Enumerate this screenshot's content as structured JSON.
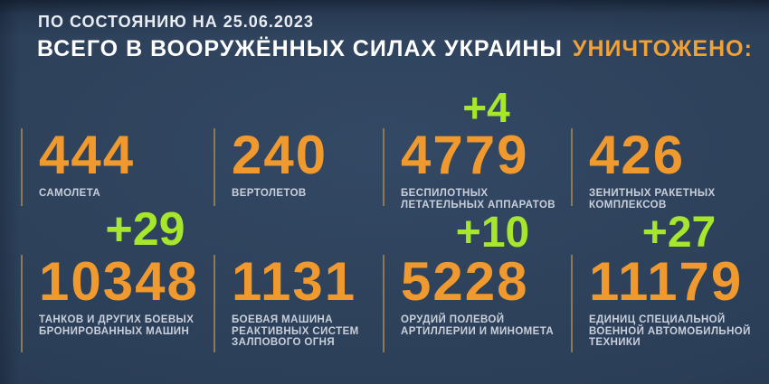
{
  "header": {
    "date_line": "ПО СОСТОЯНИЮ НА 25.06.2023",
    "title_white": "ВСЕГО В ВООРУЖЁННЫХ СИЛАХ УКРАИНЫ",
    "title_orange": "УНИЧТОЖЕНО:"
  },
  "stats": [
    {
      "value": "444",
      "delta": "",
      "label": "САМОЛЕТА"
    },
    {
      "value": "240",
      "delta": "",
      "label": "ВЕРТОЛЕТОВ"
    },
    {
      "value": "4779",
      "delta": "+4",
      "label": "БЕСПИЛОТНЫХ\nЛЕТАТЕЛЬНЫХ АППАРАТОВ"
    },
    {
      "value": "426",
      "delta": "",
      "label": "ЗЕНИТНЫХ РАКЕТНЫХ\nКОМПЛЕКСОВ"
    },
    {
      "value": "10348",
      "delta": "+29",
      "label": "ТАНКОВ И ДРУГИХ БОЕВЫХ\nБРОНИРОВАННЫХ МАШИН"
    },
    {
      "value": "1131",
      "delta": "",
      "label": "БОЕВАЯ МАШИНА\nРЕАКТИВНЫХ СИСТЕМ\nЗАЛПОВОГО ОГНЯ"
    },
    {
      "value": "5228",
      "delta": "+10",
      "label": "ОРУДИЙ ПОЛЕВОЙ\nАРТИЛЛЕРИИ И МИНОМЕТА"
    },
    {
      "value": "11179",
      "delta": "+27",
      "label": "ЕДИНИЦ СПЕЦИАЛЬНОЙ\nВОЕННОЙ АВТОМОБИЛЬНОЙ\nТЕХНИКИ"
    }
  ],
  "colors": {
    "background": "#2b3e57",
    "accent_orange": "#f0992e",
    "delta_green": "#a6e62c",
    "label_gray": "#c9cfdb",
    "divider": "#8a7a55"
  },
  "chart_data": {
    "type": "table",
    "title": "ВСЕГО В ВООРУЖЁННЫХ СИЛАХ УКРАИНЫ УНИЧТОЖЕНО:",
    "subtitle": "ПО СОСТОЯНИЮ НА 25.06.2023",
    "categories": [
      "САМОЛЕТА",
      "ВЕРТОЛЕТОВ",
      "БЕСПИЛОТНЫХ ЛЕТАТЕЛЬНЫХ АППАРАТОВ",
      "ЗЕНИТНЫХ РАКЕТНЫХ КОМПЛЕКСОВ",
      "ТАНКОВ И ДРУГИХ БОЕВЫХ БРОНИРОВАННЫХ МАШИН",
      "БОЕВАЯ МАШИНА РЕАКТИВНЫХ СИСТЕМ ЗАЛПОВОГО ОГНЯ",
      "ОРУДИЙ ПОЛЕВОЙ АРТИЛЛЕРИИ И МИНОМЕТА",
      "ЕДИНИЦ СПЕЦИАЛЬНОЙ ВОЕННОЙ АВТОМОБИЛЬНОЙ ТЕХНИКИ"
    ],
    "values": [
      444,
      240,
      4779,
      426,
      10348,
      1131,
      5228,
      11179
    ],
    "daily_increase": [
      null,
      null,
      4,
      null,
      29,
      null,
      10,
      27
    ],
    "layout": "2 rows x 4 columns, green increments shown above changed values"
  }
}
